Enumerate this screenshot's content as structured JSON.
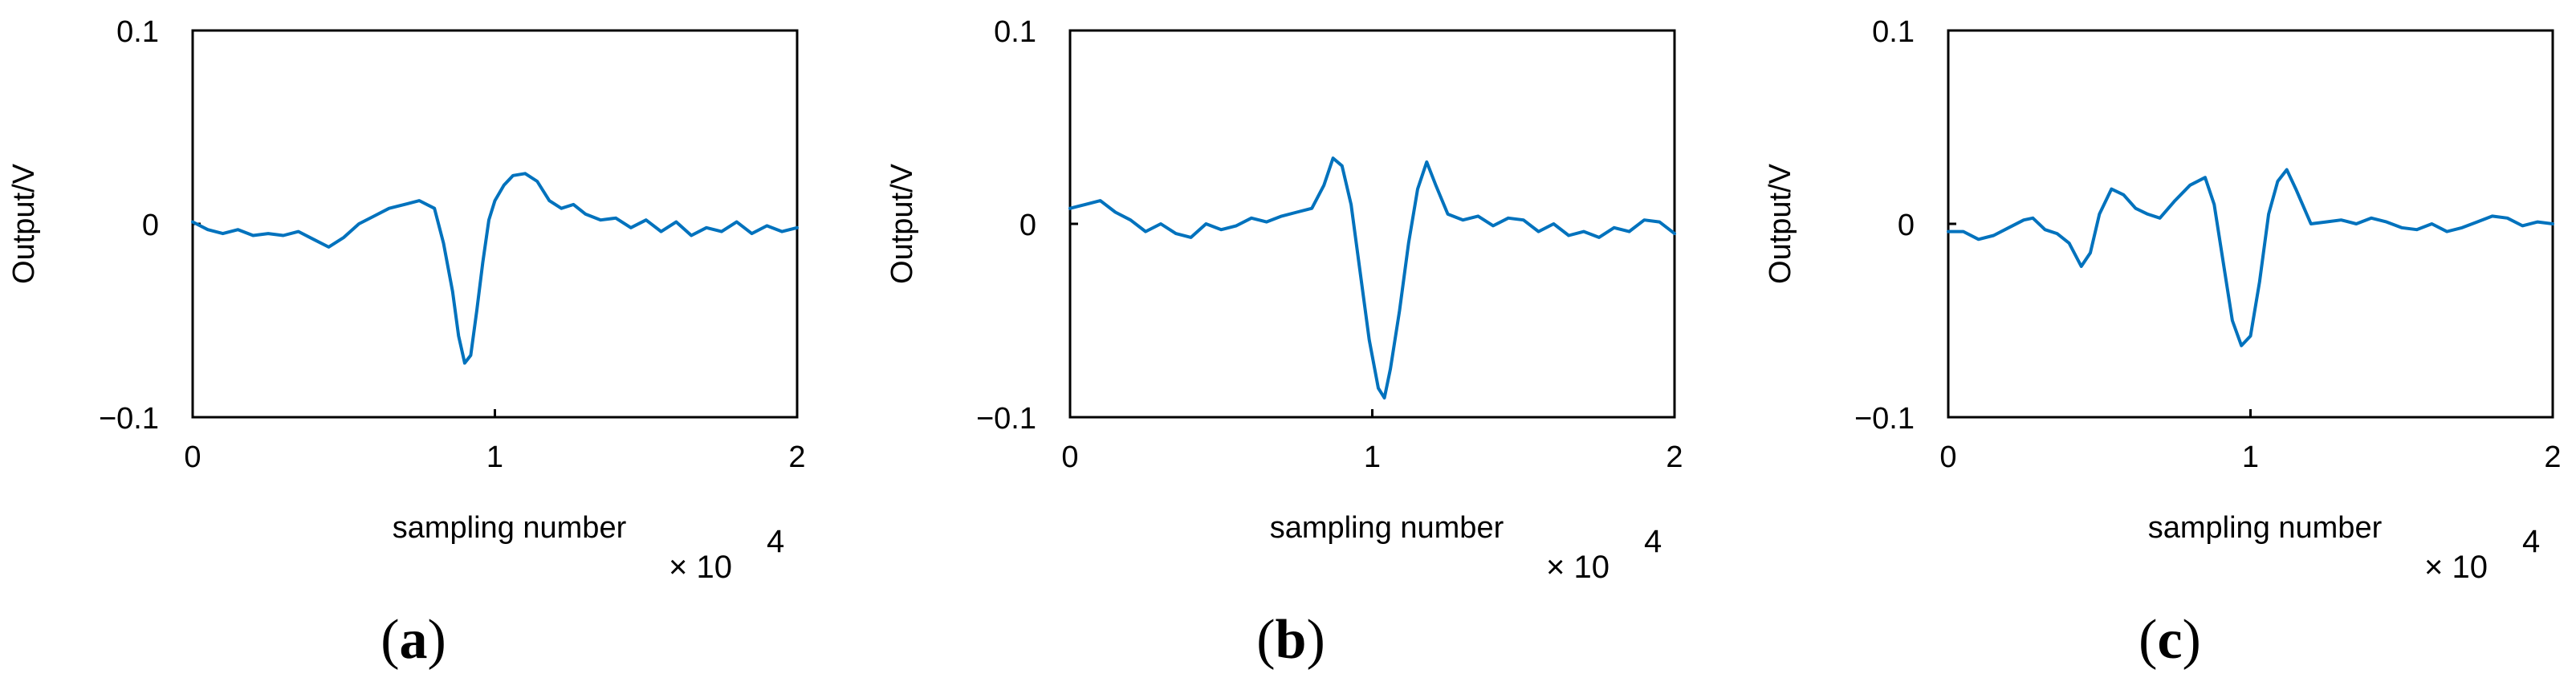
{
  "figure": {
    "panel_labels": [
      "a",
      "b",
      "c"
    ]
  },
  "chart_data": [
    {
      "type": "line",
      "panel": "a",
      "xlabel": "sampling number",
      "ylabel": "Output/V",
      "x_multiplier_base": "× 10",
      "x_multiplier_exp": "4",
      "xlim": [
        0,
        2
      ],
      "ylim": [
        -0.1,
        0.1
      ],
      "xticks": [
        "0",
        "1",
        "2"
      ],
      "yticks": [
        "0.1",
        "0",
        "-0.1"
      ],
      "ytick_values": [
        0.1,
        0,
        -0.1
      ],
      "color": "#0072BD",
      "grid": false,
      "series": [
        {
          "x": [
            0,
            0.05,
            0.1,
            0.15,
            0.2,
            0.25,
            0.3,
            0.35,
            0.4,
            0.45,
            0.5,
            0.55,
            0.6,
            0.65,
            0.7,
            0.75,
            0.8,
            0.83,
            0.86,
            0.88,
            0.9,
            0.92,
            0.94,
            0.96,
            0.98,
            1.0,
            1.03,
            1.06,
            1.1,
            1.14,
            1.18,
            1.22,
            1.26,
            1.3,
            1.35,
            1.4,
            1.45,
            1.5,
            1.55,
            1.6,
            1.65,
            1.7,
            1.75,
            1.8,
            1.85,
            1.9,
            1.95,
            2.0
          ],
          "y": [
            0.001,
            -0.003,
            -0.005,
            -0.003,
            -0.006,
            -0.005,
            -0.006,
            -0.004,
            -0.008,
            -0.012,
            -0.007,
            0.0,
            0.004,
            0.008,
            0.01,
            0.012,
            0.008,
            -0.01,
            -0.035,
            -0.058,
            -0.072,
            -0.068,
            -0.045,
            -0.02,
            0.002,
            0.012,
            0.02,
            0.025,
            0.026,
            0.022,
            0.012,
            0.008,
            0.01,
            0.005,
            0.002,
            0.003,
            -0.002,
            0.002,
            -0.004,
            0.001,
            -0.006,
            -0.002,
            -0.004,
            0.001,
            -0.005,
            -0.001,
            -0.004,
            -0.002
          ]
        }
      ]
    },
    {
      "type": "line",
      "panel": "b",
      "xlabel": "sampling number",
      "ylabel": "Output/V",
      "x_multiplier_base": "× 10",
      "x_multiplier_exp": "4",
      "xlim": [
        0,
        2
      ],
      "ylim": [
        -0.1,
        0.1
      ],
      "xticks": [
        "0",
        "1",
        "2"
      ],
      "yticks": [
        "0.1",
        "0",
        "-0.1"
      ],
      "ytick_values": [
        0.1,
        0,
        -0.1
      ],
      "color": "#0072BD",
      "grid": false,
      "series": [
        {
          "x": [
            0,
            0.05,
            0.1,
            0.15,
            0.2,
            0.25,
            0.3,
            0.35,
            0.4,
            0.45,
            0.5,
            0.55,
            0.6,
            0.65,
            0.7,
            0.75,
            0.8,
            0.84,
            0.87,
            0.9,
            0.93,
            0.96,
            0.99,
            1.02,
            1.04,
            1.06,
            1.09,
            1.12,
            1.15,
            1.18,
            1.21,
            1.25,
            1.3,
            1.35,
            1.4,
            1.45,
            1.5,
            1.55,
            1.6,
            1.65,
            1.7,
            1.75,
            1.8,
            1.85,
            1.9,
            1.95,
            2.0
          ],
          "y": [
            0.008,
            0.01,
            0.012,
            0.006,
            0.002,
            -0.004,
            0.0,
            -0.005,
            -0.007,
            0.0,
            -0.003,
            -0.001,
            0.003,
            0.001,
            0.004,
            0.006,
            0.008,
            0.02,
            0.034,
            0.03,
            0.01,
            -0.025,
            -0.06,
            -0.085,
            -0.09,
            -0.075,
            -0.045,
            -0.01,
            0.018,
            0.032,
            0.02,
            0.005,
            0.002,
            0.004,
            -0.001,
            0.003,
            0.002,
            -0.004,
            0.0,
            -0.006,
            -0.004,
            -0.007,
            -0.002,
            -0.004,
            0.002,
            0.001,
            -0.005
          ]
        }
      ]
    },
    {
      "type": "line",
      "panel": "c",
      "xlabel": "sampling number",
      "ylabel": "Output/V",
      "x_multiplier_base": "× 10",
      "x_multiplier_exp": "4",
      "xlim": [
        0,
        2
      ],
      "ylim": [
        -0.1,
        0.1
      ],
      "xticks": [
        "0",
        "1",
        "2"
      ],
      "yticks": [
        "0.1",
        "0",
        "-0.1"
      ],
      "ytick_values": [
        0.1,
        0,
        -0.1
      ],
      "color": "#0072BD",
      "grid": false,
      "series": [
        {
          "x": [
            0,
            0.05,
            0.1,
            0.15,
            0.2,
            0.25,
            0.28,
            0.32,
            0.36,
            0.4,
            0.44,
            0.47,
            0.5,
            0.54,
            0.58,
            0.62,
            0.66,
            0.7,
            0.75,
            0.8,
            0.85,
            0.88,
            0.91,
            0.94,
            0.97,
            1.0,
            1.03,
            1.06,
            1.09,
            1.12,
            1.15,
            1.2,
            1.25,
            1.3,
            1.35,
            1.4,
            1.45,
            1.5,
            1.55,
            1.6,
            1.65,
            1.7,
            1.75,
            1.8,
            1.85,
            1.9,
            1.95,
            2.0
          ],
          "y": [
            -0.004,
            -0.004,
            -0.008,
            -0.006,
            -0.002,
            0.002,
            0.003,
            -0.003,
            -0.005,
            -0.01,
            -0.022,
            -0.015,
            0.005,
            0.018,
            0.015,
            0.008,
            0.005,
            0.003,
            0.012,
            0.02,
            0.024,
            0.01,
            -0.02,
            -0.05,
            -0.063,
            -0.058,
            -0.03,
            0.005,
            0.022,
            0.028,
            0.018,
            0.0,
            0.001,
            0.002,
            0.0,
            0.003,
            0.001,
            -0.002,
            -0.003,
            0.0,
            -0.004,
            -0.002,
            0.001,
            0.004,
            0.003,
            -0.001,
            0.001,
            0.0
          ]
        }
      ]
    }
  ]
}
